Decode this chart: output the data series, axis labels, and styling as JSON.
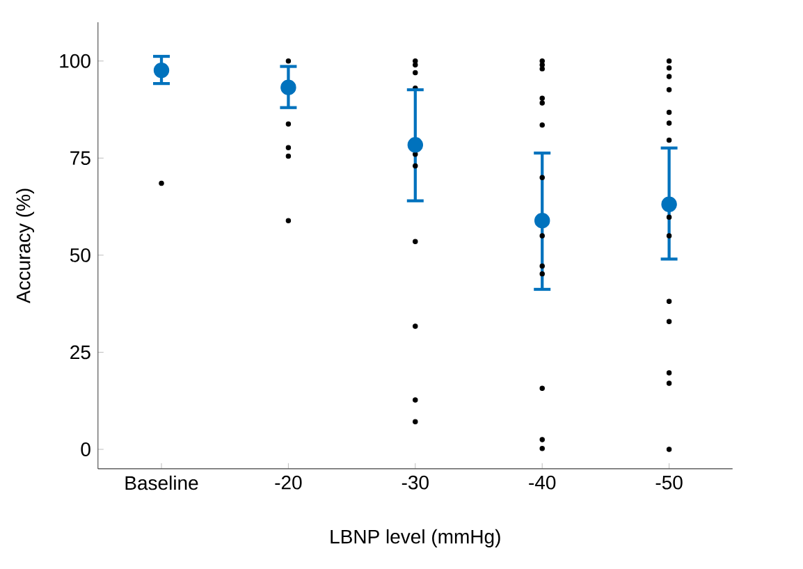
{
  "chart_data": {
    "type": "scatter",
    "xlabel": "LBNP level (mmHg)",
    "ylabel": "Accuracy (%)",
    "categories": [
      "Baseline",
      "-20",
      "-30",
      "-40",
      "-50"
    ],
    "ylim": [
      -5,
      110
    ],
    "yticks": [
      0,
      25,
      50,
      75,
      100
    ],
    "grid": false,
    "series": [
      {
        "color": "#000000",
        "x": [
          "Baseline",
          "-20",
          "-20",
          "-20",
          "-20",
          "-20",
          "-30",
          "-30",
          "-30",
          "-30",
          "-30",
          "-30",
          "-30",
          "-30",
          "-30",
          "-30",
          "-40",
          "-40",
          "-40",
          "-40",
          "-40",
          "-40",
          "-40",
          "-40",
          "-40",
          "-40",
          "-40",
          "-40",
          "-40",
          "-50",
          "-50",
          "-50",
          "-50",
          "-50",
          "-50",
          "-50",
          "-50",
          "-50",
          "-50",
          "-50",
          "-50",
          "-50",
          "-50"
        ],
        "values": [
          68.5,
          100,
          83.8,
          77.7,
          75.5,
          58.9,
          100,
          99,
          97,
          93,
          76,
          73,
          53.5,
          31.7,
          12.7,
          7.1,
          100,
          99,
          98,
          90.4,
          89.2,
          83.5,
          70,
          55,
          47.2,
          45.2,
          15.7,
          2.5,
          0.2,
          100,
          98.2,
          96,
          92.6,
          86.8,
          84,
          79.6,
          59.8,
          55,
          38.1,
          32.9,
          19.7,
          17,
          0
        ]
      },
      {
        "color": "#0072bd",
        "values": [
          97.6,
          93.2,
          78.4,
          58.9,
          63.1
        ],
        "errors": [
          [
            94.2,
            101.2
          ],
          [
            88.0,
            98.6
          ],
          [
            64.0,
            92.6
          ],
          [
            41.2,
            76.3
          ],
          [
            49.0,
            77.6
          ]
        ]
      }
    ]
  }
}
